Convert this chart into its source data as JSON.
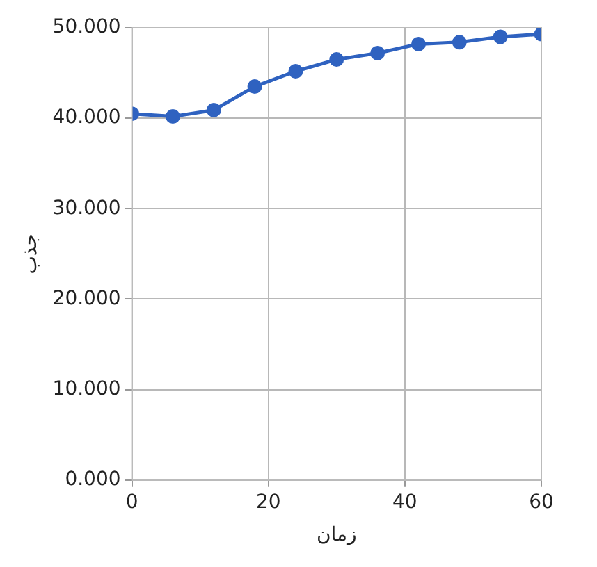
{
  "chart_data": {
    "type": "line",
    "xlabel": "زمان",
    "ylabel": "جذب",
    "x": [
      0,
      6,
      12,
      18,
      24,
      30,
      36,
      42,
      48,
      54,
      60
    ],
    "series": [
      {
        "color": "#2f62c0",
        "values": [
          40.5,
          40.2,
          40.9,
          43.5,
          45.2,
          46.5,
          47.2,
          48.2,
          48.4,
          49.0,
          49.3
        ]
      }
    ],
    "xlim": [
      0,
      60
    ],
    "xticks": [
      0,
      20,
      40,
      60
    ],
    "ylim": [
      0,
      50
    ],
    "yticks": [
      {
        "value": 0,
        "label": "0.000"
      },
      {
        "value": 10,
        "label": "10.000"
      },
      {
        "value": 20,
        "label": "20.000"
      },
      {
        "value": 30,
        "label": "30.000"
      },
      {
        "value": 40,
        "label": "40.000"
      },
      {
        "value": 50,
        "label": "50.000"
      }
    ],
    "grid": true,
    "marker": "circle",
    "line_style": "solid",
    "legend": false
  }
}
